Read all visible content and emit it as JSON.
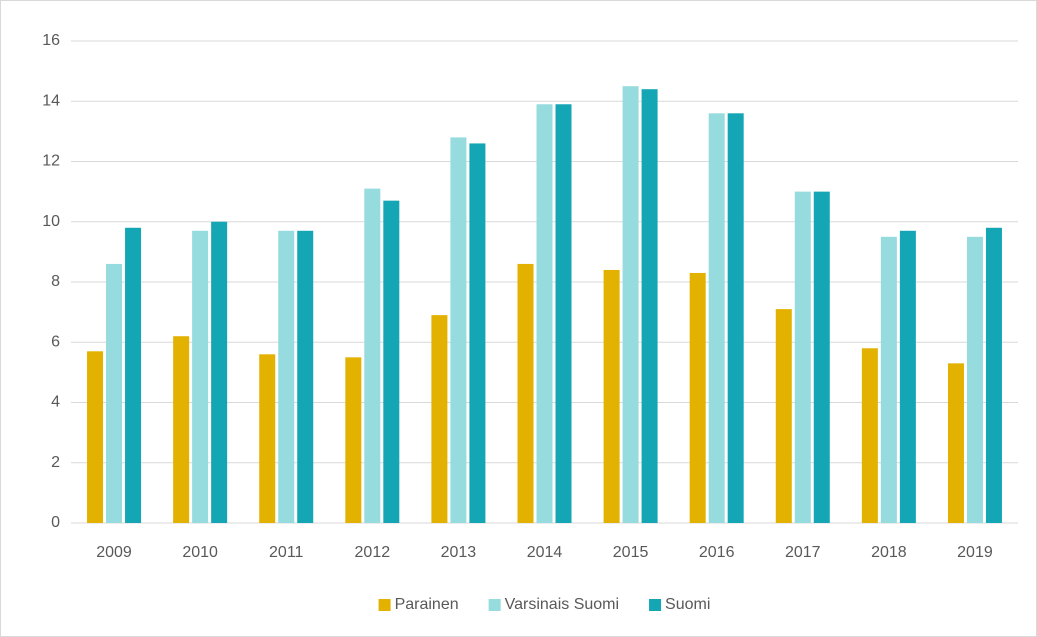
{
  "chart_data": {
    "type": "bar",
    "categories": [
      "2009",
      "2010",
      "2011",
      "2012",
      "2013",
      "2014",
      "2015",
      "2016",
      "2017",
      "2018",
      "2019"
    ],
    "series": [
      {
        "name": "Parainen",
        "color": "#e3b100",
        "values": [
          5.7,
          6.2,
          5.6,
          5.5,
          6.9,
          8.6,
          8.4,
          8.3,
          7.1,
          5.8,
          5.3
        ]
      },
      {
        "name": "Varsinais Suomi",
        "color": "#96dbde",
        "values": [
          8.6,
          9.7,
          9.7,
          11.1,
          12.8,
          13.9,
          14.5,
          13.6,
          11.0,
          9.5,
          9.5
        ]
      },
      {
        "name": "Suomi",
        "color": "#14a6b4",
        "values": [
          9.8,
          10.0,
          9.7,
          10.7,
          12.6,
          13.9,
          14.4,
          13.6,
          11.0,
          9.7,
          9.8
        ]
      }
    ],
    "ylim": [
      0,
      16
    ],
    "yticks": [
      0,
      2,
      4,
      6,
      8,
      10,
      12,
      14,
      16
    ],
    "grid": true,
    "legend": "bottom"
  }
}
